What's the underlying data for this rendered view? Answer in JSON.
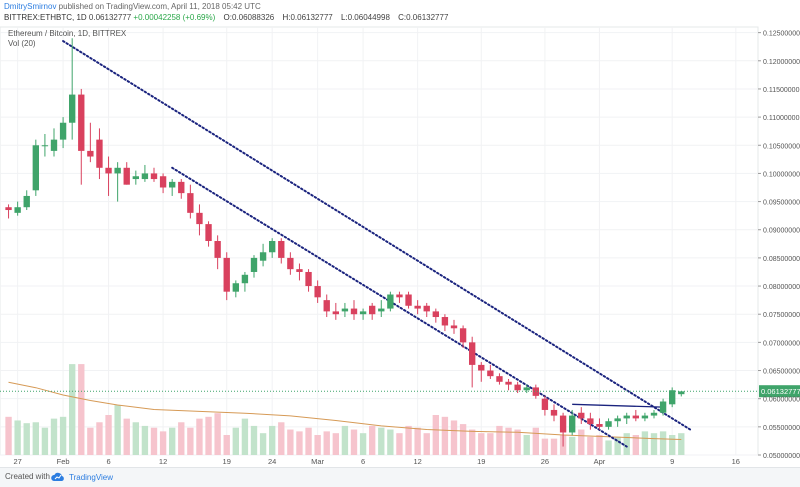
{
  "header": {
    "author": "DmitrySmirnov",
    "publish_text": " published on TradingView.com, April 11, 2018 05:42 UTC",
    "symbol": "BITTREX:ETHBTC, 1D",
    "last": "0.06132777",
    "change": "+0.00042258 (+0.69%)",
    "open_label": "O:",
    "open": "0.06088326",
    "high_label": "H:",
    "high": "0.06132777",
    "low_label": "L:",
    "low": "0.06044998",
    "close_label": "C:",
    "close": "0.06132777"
  },
  "pane": {
    "title": "Ethereum / Bitcoin, 1D, BITTREX",
    "volume_label": "Vol (20)"
  },
  "footer": {
    "created_with": "Created with",
    "brand": "TradingView"
  },
  "colors": {
    "up": "#3fa46a",
    "down": "#d9415e",
    "up_vol": "#c2e3cb",
    "down_vol": "#f6c4cd",
    "ma": "#d69a56",
    "trend": "#1a237e",
    "last_price": "#3fa46a"
  },
  "chart_data": {
    "type": "candlestick",
    "y_ticks": [
      "0.12500000",
      "0.12000000",
      "0.11500000",
      "0.11000000",
      "0.10500000",
      "0.10000000",
      "0.09500000",
      "0.09000000",
      "0.08500000",
      "0.08000000",
      "0.07500000",
      "0.07000000",
      "0.06500000",
      "0.06000000",
      "0.05500000",
      "0.05000000"
    ],
    "ylim": [
      0.05,
      0.126
    ],
    "x_ticks": [
      {
        "label": "27",
        "day": -5
      },
      {
        "label": "Feb",
        "day": 0
      },
      {
        "label": "6",
        "day": 5
      },
      {
        "label": "12",
        "day": 11
      },
      {
        "label": "19",
        "day": 18
      },
      {
        "label": "24",
        "day": 23
      },
      {
        "label": "Mar",
        "day": 28
      },
      {
        "label": "6",
        "day": 33
      },
      {
        "label": "12",
        "day": 39
      },
      {
        "label": "19",
        "day": 46
      },
      {
        "label": "26",
        "day": 53
      },
      {
        "label": "Apr",
        "day": 59
      },
      {
        "label": "9",
        "day": 67
      },
      {
        "label": "16",
        "day": 74
      }
    ],
    "xlim": [
      -6.5,
      76
    ],
    "last_price_label": "0.06132777",
    "candles": [
      {
        "day": -6,
        "o": 0.094,
        "h": 0.0945,
        "l": 0.092,
        "c": 0.0935
      },
      {
        "day": -5,
        "o": 0.093,
        "h": 0.095,
        "l": 0.0925,
        "c": 0.094
      },
      {
        "day": -4,
        "o": 0.094,
        "h": 0.097,
        "l": 0.0935,
        "c": 0.096
      },
      {
        "day": -3,
        "o": 0.097,
        "h": 0.106,
        "l": 0.096,
        "c": 0.105
      },
      {
        "day": -2,
        "o": 0.105,
        "h": 0.107,
        "l": 0.103,
        "c": 0.105
      },
      {
        "day": -1,
        "o": 0.104,
        "h": 0.108,
        "l": 0.103,
        "c": 0.106
      },
      {
        "day": 0,
        "o": 0.106,
        "h": 0.11,
        "l": 0.1045,
        "c": 0.109
      },
      {
        "day": 1,
        "o": 0.109,
        "h": 0.124,
        "l": 0.106,
        "c": 0.114
      },
      {
        "day": 2,
        "o": 0.114,
        "h": 0.115,
        "l": 0.098,
        "c": 0.104
      },
      {
        "day": 3,
        "o": 0.104,
        "h": 0.109,
        "l": 0.102,
        "c": 0.103
      },
      {
        "day": 4,
        "o": 0.106,
        "h": 0.108,
        "l": 0.099,
        "c": 0.101
      },
      {
        "day": 5,
        "o": 0.101,
        "h": 0.103,
        "l": 0.096,
        "c": 0.1
      },
      {
        "day": 6,
        "o": 0.1,
        "h": 0.102,
        "l": 0.095,
        "c": 0.101
      },
      {
        "day": 7,
        "o": 0.101,
        "h": 0.102,
        "l": 0.098,
        "c": 0.098
      },
      {
        "day": 8,
        "o": 0.099,
        "h": 0.1005,
        "l": 0.098,
        "c": 0.0995
      },
      {
        "day": 9,
        "o": 0.099,
        "h": 0.1015,
        "l": 0.0985,
        "c": 0.1
      },
      {
        "day": 10,
        "o": 0.1,
        "h": 0.101,
        "l": 0.0985,
        "c": 0.099
      },
      {
        "day": 11,
        "o": 0.0995,
        "h": 0.1,
        "l": 0.0965,
        "c": 0.0975
      },
      {
        "day": 12,
        "o": 0.0975,
        "h": 0.099,
        "l": 0.096,
        "c": 0.0985
      },
      {
        "day": 13,
        "o": 0.0985,
        "h": 0.099,
        "l": 0.0955,
        "c": 0.0965
      },
      {
        "day": 14,
        "o": 0.0965,
        "h": 0.098,
        "l": 0.092,
        "c": 0.093
      },
      {
        "day": 15,
        "o": 0.093,
        "h": 0.0945,
        "l": 0.089,
        "c": 0.091
      },
      {
        "day": 16,
        "o": 0.091,
        "h": 0.0915,
        "l": 0.087,
        "c": 0.088
      },
      {
        "day": 17,
        "o": 0.088,
        "h": 0.089,
        "l": 0.083,
        "c": 0.085
      },
      {
        "day": 18,
        "o": 0.085,
        "h": 0.086,
        "l": 0.0775,
        "c": 0.079
      },
      {
        "day": 19,
        "o": 0.079,
        "h": 0.081,
        "l": 0.078,
        "c": 0.0805
      },
      {
        "day": 20,
        "o": 0.0805,
        "h": 0.0825,
        "l": 0.079,
        "c": 0.082
      },
      {
        "day": 21,
        "o": 0.0825,
        "h": 0.0855,
        "l": 0.0815,
        "c": 0.085
      },
      {
        "day": 22,
        "o": 0.0845,
        "h": 0.0875,
        "l": 0.0835,
        "c": 0.086
      },
      {
        "day": 23,
        "o": 0.086,
        "h": 0.0885,
        "l": 0.085,
        "c": 0.088
      },
      {
        "day": 24,
        "o": 0.088,
        "h": 0.0885,
        "l": 0.084,
        "c": 0.085
      },
      {
        "day": 25,
        "o": 0.085,
        "h": 0.086,
        "l": 0.082,
        "c": 0.083
      },
      {
        "day": 26,
        "o": 0.083,
        "h": 0.084,
        "l": 0.081,
        "c": 0.0825
      },
      {
        "day": 27,
        "o": 0.0825,
        "h": 0.083,
        "l": 0.079,
        "c": 0.08
      },
      {
        "day": 28,
        "o": 0.08,
        "h": 0.081,
        "l": 0.077,
        "c": 0.078
      },
      {
        "day": 29,
        "o": 0.0775,
        "h": 0.0785,
        "l": 0.0745,
        "c": 0.0755
      },
      {
        "day": 30,
        "o": 0.0755,
        "h": 0.077,
        "l": 0.074,
        "c": 0.075
      },
      {
        "day": 31,
        "o": 0.0755,
        "h": 0.077,
        "l": 0.0745,
        "c": 0.076
      },
      {
        "day": 32,
        "o": 0.076,
        "h": 0.0775,
        "l": 0.074,
        "c": 0.075
      },
      {
        "day": 33,
        "o": 0.075,
        "h": 0.076,
        "l": 0.074,
        "c": 0.0755
      },
      {
        "day": 34,
        "o": 0.0765,
        "h": 0.077,
        "l": 0.074,
        "c": 0.075
      },
      {
        "day": 35,
        "o": 0.0755,
        "h": 0.0775,
        "l": 0.0745,
        "c": 0.076
      },
      {
        "day": 36,
        "o": 0.076,
        "h": 0.079,
        "l": 0.0755,
        "c": 0.0785
      },
      {
        "day": 37,
        "o": 0.0785,
        "h": 0.079,
        "l": 0.077,
        "c": 0.078
      },
      {
        "day": 38,
        "o": 0.0785,
        "h": 0.079,
        "l": 0.076,
        "c": 0.0765
      },
      {
        "day": 39,
        "o": 0.0765,
        "h": 0.0775,
        "l": 0.075,
        "c": 0.076
      },
      {
        "day": 40,
        "o": 0.0765,
        "h": 0.077,
        "l": 0.0745,
        "c": 0.0755
      },
      {
        "day": 41,
        "o": 0.0755,
        "h": 0.076,
        "l": 0.0735,
        "c": 0.0745
      },
      {
        "day": 42,
        "o": 0.0745,
        "h": 0.075,
        "l": 0.072,
        "c": 0.073
      },
      {
        "day": 43,
        "o": 0.073,
        "h": 0.074,
        "l": 0.0715,
        "c": 0.0725
      },
      {
        "day": 44,
        "o": 0.0725,
        "h": 0.073,
        "l": 0.069,
        "c": 0.07
      },
      {
        "day": 45,
        "o": 0.07,
        "h": 0.071,
        "l": 0.062,
        "c": 0.066
      },
      {
        "day": 46,
        "o": 0.066,
        "h": 0.0665,
        "l": 0.063,
        "c": 0.065
      },
      {
        "day": 47,
        "o": 0.065,
        "h": 0.066,
        "l": 0.0635,
        "c": 0.064
      },
      {
        "day": 48,
        "o": 0.064,
        "h": 0.0645,
        "l": 0.0625,
        "c": 0.063
      },
      {
        "day": 49,
        "o": 0.063,
        "h": 0.0635,
        "l": 0.0615,
        "c": 0.0625
      },
      {
        "day": 50,
        "o": 0.0625,
        "h": 0.063,
        "l": 0.061,
        "c": 0.0615
      },
      {
        "day": 51,
        "o": 0.0615,
        "h": 0.0625,
        "l": 0.061,
        "c": 0.062
      },
      {
        "day": 52,
        "o": 0.062,
        "h": 0.0625,
        "l": 0.06,
        "c": 0.0605
      },
      {
        "day": 53,
        "o": 0.06,
        "h": 0.0605,
        "l": 0.057,
        "c": 0.058
      },
      {
        "day": 54,
        "o": 0.058,
        "h": 0.059,
        "l": 0.056,
        "c": 0.057
      },
      {
        "day": 55,
        "o": 0.057,
        "h": 0.0575,
        "l": 0.0515,
        "c": 0.054
      },
      {
        "day": 56,
        "o": 0.054,
        "h": 0.058,
        "l": 0.0535,
        "c": 0.057
      },
      {
        "day": 57,
        "o": 0.0575,
        "h": 0.0585,
        "l": 0.0555,
        "c": 0.0565
      },
      {
        "day": 58,
        "o": 0.0565,
        "h": 0.0575,
        "l": 0.0545,
        "c": 0.0555
      },
      {
        "day": 59,
        "o": 0.0555,
        "h": 0.0565,
        "l": 0.0545,
        "c": 0.055
      },
      {
        "day": 60,
        "o": 0.055,
        "h": 0.0565,
        "l": 0.0545,
        "c": 0.056
      },
      {
        "day": 61,
        "o": 0.056,
        "h": 0.057,
        "l": 0.055,
        "c": 0.0565
      },
      {
        "day": 62,
        "o": 0.0565,
        "h": 0.0575,
        "l": 0.0555,
        "c": 0.057
      },
      {
        "day": 63,
        "o": 0.057,
        "h": 0.058,
        "l": 0.056,
        "c": 0.0565
      },
      {
        "day": 64,
        "o": 0.0565,
        "h": 0.0575,
        "l": 0.056,
        "c": 0.057
      },
      {
        "day": 65,
        "o": 0.057,
        "h": 0.058,
        "l": 0.0565,
        "c": 0.0575
      },
      {
        "day": 66,
        "o": 0.0575,
        "h": 0.06,
        "l": 0.057,
        "c": 0.0595
      },
      {
        "day": 67,
        "o": 0.059,
        "h": 0.062,
        "l": 0.0585,
        "c": 0.0615
      },
      {
        "day": 68,
        "o": 0.0608,
        "h": 0.0613,
        "l": 0.0604,
        "c": 0.0613
      }
    ],
    "volumes": [
      42,
      38,
      35,
      36,
      30,
      40,
      42,
      100,
      100,
      30,
      36,
      44,
      55,
      40,
      36,
      32,
      30,
      26,
      30,
      36,
      30,
      40,
      42,
      46,
      22,
      30,
      40,
      32,
      24,
      32,
      36,
      28,
      26,
      30,
      22,
      26,
      24,
      32,
      28,
      24,
      32,
      30,
      28,
      24,
      32,
      30,
      24,
      44,
      42,
      38,
      34,
      28,
      24,
      24,
      32,
      30,
      28,
      22,
      30,
      18,
      18,
      22,
      20,
      28,
      20,
      22,
      16,
      20,
      24,
      22,
      26,
      24,
      26,
      22,
      24
    ],
    "vol_ylim": [
      0,
      110
    ],
    "ma_line": [
      {
        "day": -6,
        "v": 80
      },
      {
        "day": -3,
        "v": 74
      },
      {
        "day": 0,
        "v": 66
      },
      {
        "day": 3,
        "v": 60
      },
      {
        "day": 6,
        "v": 55
      },
      {
        "day": 10,
        "v": 50
      },
      {
        "day": 15,
        "v": 48
      },
      {
        "day": 20,
        "v": 46
      },
      {
        "day": 25,
        "v": 43
      },
      {
        "day": 30,
        "v": 38
      },
      {
        "day": 35,
        "v": 32
      },
      {
        "day": 40,
        "v": 28
      },
      {
        "day": 45,
        "v": 26
      },
      {
        "day": 50,
        "v": 25
      },
      {
        "day": 55,
        "v": 22
      },
      {
        "day": 60,
        "v": 20
      },
      {
        "day": 65,
        "v": 18
      },
      {
        "day": 68,
        "v": 17
      }
    ],
    "trendlines": [
      {
        "style": "dotted",
        "from": {
          "day": 0,
          "price": 0.1235
        },
        "to": {
          "day": 69,
          "price": 0.0545
        }
      },
      {
        "style": "dotted",
        "from": {
          "day": 12,
          "price": 0.101
        },
        "to": {
          "day": 62,
          "price": 0.0515
        }
      },
      {
        "style": "solid",
        "from": {
          "day": 56,
          "price": 0.059
        },
        "to": {
          "day": 66,
          "price": 0.0585
        }
      }
    ]
  }
}
